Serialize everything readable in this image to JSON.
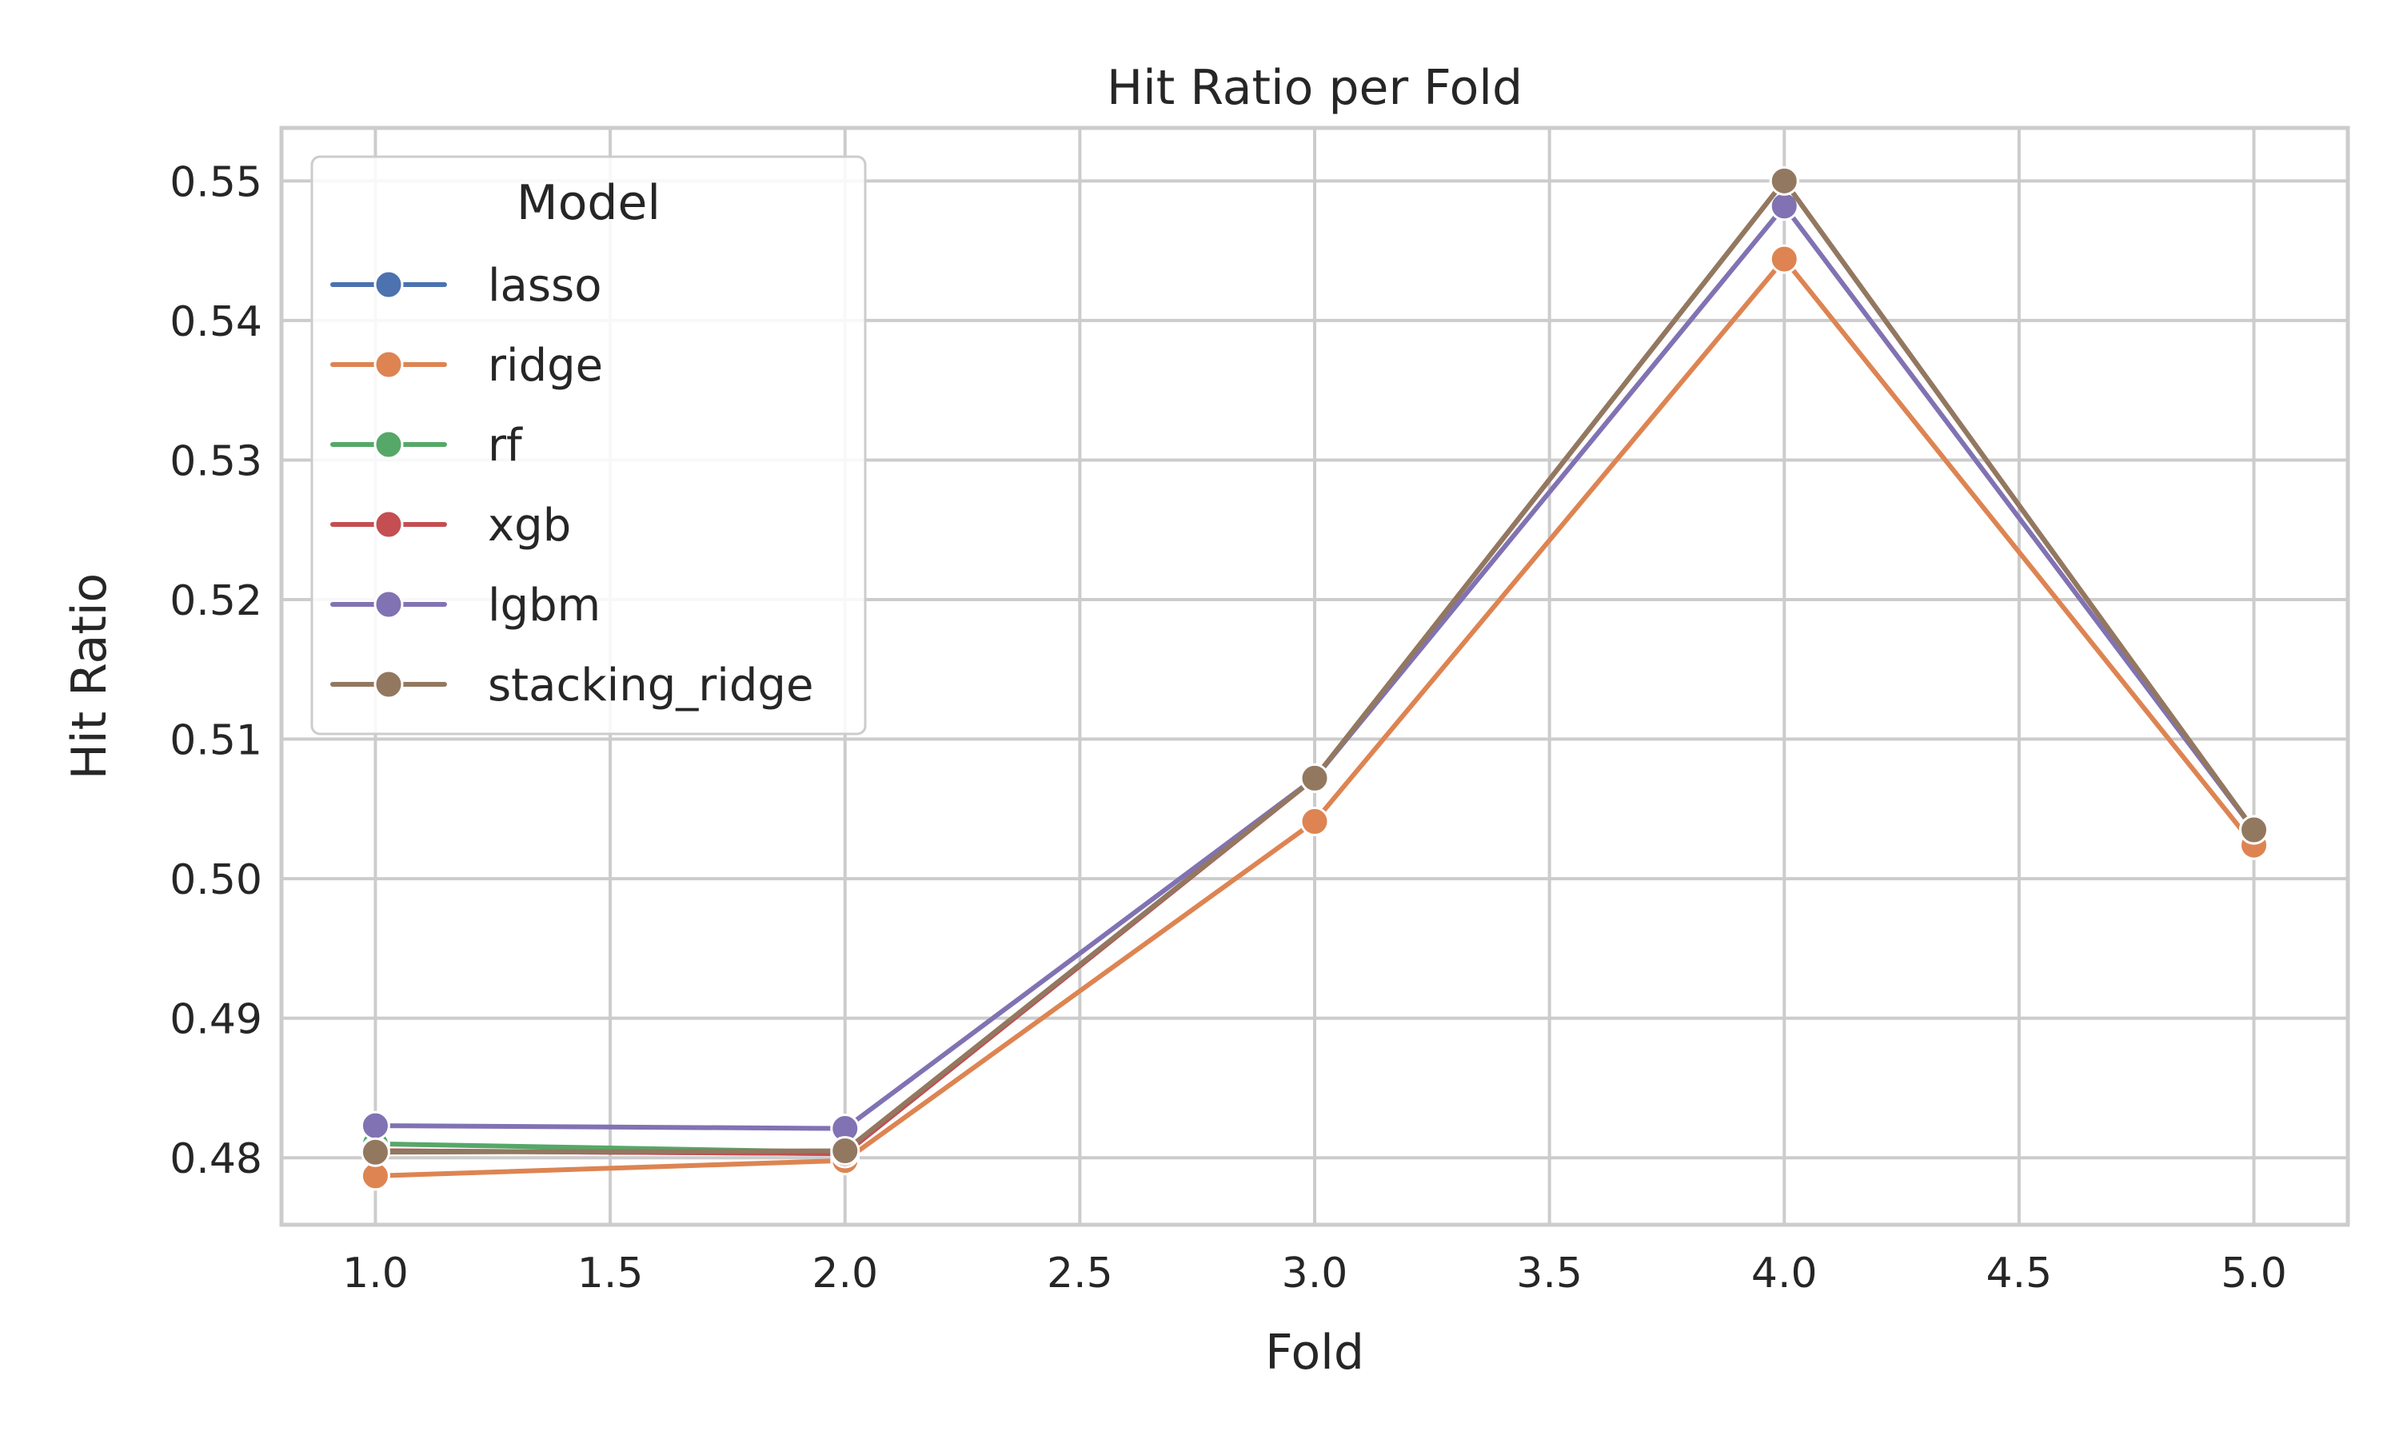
{
  "chart_data": {
    "type": "line",
    "title": "Hit Ratio per Fold",
    "xlabel": "Fold",
    "ylabel": "Hit Ratio",
    "xlim": [
      0.8,
      5.2
    ],
    "ylim": [
      0.4752,
      0.5538
    ],
    "x": [
      1,
      2,
      3,
      4,
      5
    ],
    "xticks": [
      1.0,
      1.5,
      2.0,
      2.5,
      3.0,
      3.5,
      4.0,
      4.5,
      5.0
    ],
    "xtick_labels": [
      "1.0",
      "1.5",
      "2.0",
      "2.5",
      "3.0",
      "3.5",
      "4.0",
      "4.5",
      "5.0"
    ],
    "yticks": [
      0.48,
      0.49,
      0.5,
      0.51,
      0.52,
      0.53,
      0.54,
      0.55
    ],
    "ytick_labels": [
      "0.48",
      "0.49",
      "0.50",
      "0.51",
      "0.52",
      "0.53",
      "0.54",
      "0.55"
    ],
    "grid": true,
    "legend": {
      "title": "Model",
      "placement": "upper-left"
    },
    "series": [
      {
        "name": "lasso",
        "color": "#4c72b0",
        "values": [
          0.4805,
          0.4803,
          0.5072,
          0.55,
          0.5035
        ]
      },
      {
        "name": "ridge",
        "color": "#dd8452",
        "values": [
          0.4787,
          0.4798,
          0.5041,
          0.5444,
          0.5024
        ]
      },
      {
        "name": "rf",
        "color": "#55a868",
        "values": [
          0.481,
          0.4804,
          0.5072,
          0.55,
          0.5035
        ]
      },
      {
        "name": "xgb",
        "color": "#c44e52",
        "values": [
          0.4805,
          0.4803,
          0.5072,
          0.55,
          0.5035
        ]
      },
      {
        "name": "lgbm",
        "color": "#8172b3",
        "values": [
          0.4823,
          0.4821,
          0.5072,
          0.5482,
          0.5035
        ]
      },
      {
        "name": "stacking_ridge",
        "color": "#937860",
        "values": [
          0.4804,
          0.4805,
          0.5072,
          0.55,
          0.5035
        ]
      }
    ]
  }
}
